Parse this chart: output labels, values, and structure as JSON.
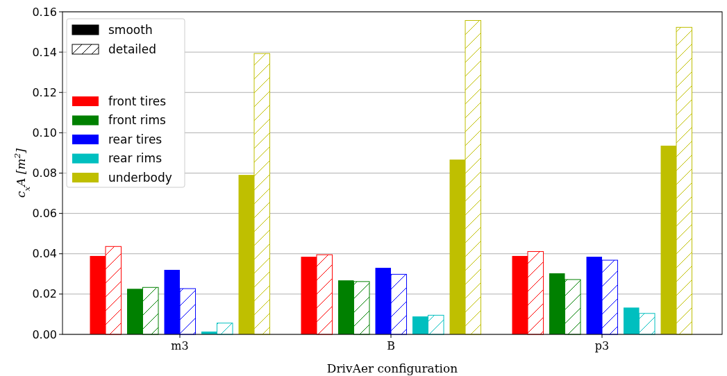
{
  "chart_data": {
    "type": "bar",
    "xlabel": "DrivAer configuration",
    "ylabel": "c$_{x}$A [m$^{2}$]",
    "categories": [
      "m3",
      "B",
      "p3"
    ],
    "series": [
      {
        "name": "front tires",
        "color": "#ff0000",
        "values": [
          0.0389,
          0.0385,
          0.0389
        ]
      },
      {
        "color": "#ff0000",
        "values": [
          0.0436,
          0.0395,
          0.0411
        ]
      },
      {
        "name": "front rims",
        "color": "#008000",
        "values": [
          0.0226,
          0.0268,
          0.0303
        ]
      },
      {
        "color": "#008000",
        "values": [
          0.0233,
          0.0262,
          0.0272
        ]
      },
      {
        "name": "rear tires",
        "color": "#0000ff",
        "values": [
          0.032,
          0.033,
          0.0385
        ]
      },
      {
        "color": "#0000ff",
        "values": [
          0.0227,
          0.0298,
          0.0368
        ]
      },
      {
        "name": "rear rims",
        "color": "#00bfbf",
        "values": [
          0.0014,
          0.0089,
          0.0133
        ]
      },
      {
        "color": "#00bfbf",
        "values": [
          0.0056,
          0.0095,
          0.0104
        ]
      },
      {
        "name": "underbody",
        "color": "#bfbf00",
        "values": [
          0.0791,
          0.0867,
          0.0936
        ]
      },
      {
        "color": "#bfbf00",
        "values": [
          0.1393,
          0.1557,
          0.1523
        ]
      }
    ],
    "annotations": [
      "smooth",
      "detailed"
    ],
    "ylim": [
      0,
      0.16
    ],
    "yticks": [
      {
        "value": 0,
        "label": "0.00"
      },
      {
        "value": 0.02,
        "label": "0.02"
      },
      {
        "value": 0.04,
        "label": "0.04"
      },
      {
        "value": 0.06,
        "label": "0.06"
      },
      {
        "value": 0.08,
        "label": "0.08"
      },
      {
        "value": 0.1,
        "label": "0.10"
      },
      {
        "value": 0.12,
        "label": "0.12"
      },
      {
        "value": 0.14,
        "label": "0.14"
      },
      {
        "value": 0.16,
        "label": "0.16"
      }
    ],
    "grid": "y",
    "legend": "top left"
  }
}
